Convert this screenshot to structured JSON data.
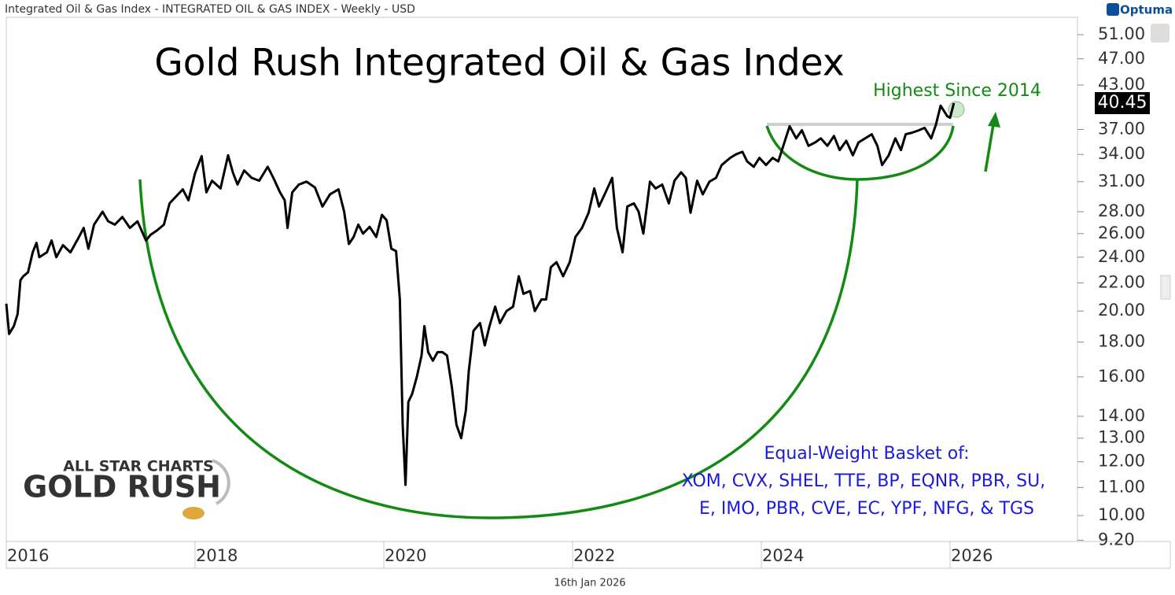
{
  "chart_data": {
    "type": "line",
    "source_label": "Integrated Oil & Gas Index - INTEGRATED OIL & GAS INDEX - Weekly - USD",
    "brand": "Optuma",
    "title": "Gold Rush Integrated Oil & Gas Index",
    "callout": "Highest Since 2014",
    "note_lines": [
      "Equal-Weight Basket of:",
      "XOM, CVX, SHEL, TTE, BP, EQNR, PBR, SU,",
      "E, IMO, PBR, CVE, EC, YPF, NFG, & TGS"
    ],
    "watermark_lines": [
      "ALL STAR CHARTS",
      "GOLD RUSH"
    ],
    "date_label": "16th Jan 2026",
    "color": "#000000",
    "log_scale": true,
    "grid": false,
    "last_value": 40.45,
    "xlim": [
      2016,
      2027.35
    ],
    "xticks": [
      2016,
      2018,
      2020,
      2022,
      2024,
      2026
    ],
    "ylim": [
      9.16,
      54.1
    ],
    "yticks": [
      {
        "value": 51,
        "label": "51.00"
      },
      {
        "value": 47,
        "label": "47.00"
      },
      {
        "value": 43,
        "label": "43.00"
      },
      {
        "value": 37,
        "label": "37.00"
      },
      {
        "value": 34,
        "label": "34.00"
      },
      {
        "value": 31,
        "label": "31.00"
      },
      {
        "value": 28,
        "label": "28.00"
      },
      {
        "value": 26,
        "label": "26.00"
      },
      {
        "value": 24,
        "label": "24.00"
      },
      {
        "value": 22,
        "label": "22.00"
      },
      {
        "value": 20,
        "label": "20.00"
      },
      {
        "value": 18,
        "label": "18.00"
      },
      {
        "value": 16,
        "label": "16.00"
      },
      {
        "value": 14,
        "label": "14.00"
      },
      {
        "value": 13,
        "label": "13.00"
      },
      {
        "value": 12,
        "label": "12.00"
      },
      {
        "value": 11,
        "label": "11.00"
      },
      {
        "value": 10,
        "label": "10.00"
      },
      {
        "value": 9.2,
        "label": "9.20"
      }
    ],
    "x": [
      2016.0,
      2016.03,
      2016.08,
      2016.12,
      2016.15,
      2016.18,
      2016.23,
      2016.28,
      2016.32,
      2016.35,
      2016.43,
      2016.48,
      2016.53,
      2016.6,
      2016.68,
      2016.77,
      2016.82,
      2016.87,
      2016.93,
      2017.02,
      2017.08,
      2017.15,
      2017.23,
      2017.31,
      2017.39,
      2017.48,
      2017.53,
      2017.6,
      2017.67,
      2017.73,
      2017.78,
      2017.87,
      2017.93,
      2018.0,
      2018.07,
      2018.12,
      2018.18,
      2018.27,
      2018.35,
      2018.4,
      2018.45,
      2018.52,
      2018.6,
      2018.68,
      2018.77,
      2018.83,
      2018.9,
      2018.95,
      2018.98,
      2019.03,
      2019.1,
      2019.18,
      2019.27,
      2019.35,
      2019.43,
      2019.52,
      2019.58,
      2019.63,
      2019.68,
      2019.73,
      2019.78,
      2019.85,
      2019.92,
      2019.98,
      2020.03,
      2020.08,
      2020.13,
      2020.17,
      2020.2,
      2020.23,
      2020.26,
      2020.3,
      2020.35,
      2020.4,
      2020.43,
      2020.47,
      2020.52,
      2020.57,
      2020.62,
      2020.67,
      2020.72,
      2020.77,
      2020.82,
      2020.87,
      2020.9,
      2020.95,
      2021.02,
      2021.07,
      2021.12,
      2021.18,
      2021.23,
      2021.3,
      2021.37,
      2021.43,
      2021.48,
      2021.55,
      2021.6,
      2021.67,
      2021.72,
      2021.77,
      2021.83,
      2021.9,
      2021.97,
      2022.03,
      2022.1,
      2022.17,
      2022.23,
      2022.28,
      2022.35,
      2022.42,
      2022.47,
      2022.53,
      2022.58,
      2022.65,
      2022.7,
      2022.75,
      2022.82,
      2022.88,
      2022.95,
      2023.02,
      2023.08,
      2023.15,
      2023.2,
      2023.25,
      2023.32,
      2023.38,
      2023.45,
      2023.52,
      2023.58,
      2023.67,
      2023.73,
      2023.8,
      2023.85,
      2023.92,
      2023.98,
      2024.05,
      2024.12,
      2024.18,
      2024.25,
      2024.3,
      2024.37,
      2024.43,
      2024.5,
      2024.57,
      2024.63,
      2024.7,
      2024.77,
      2024.83,
      2024.9,
      2024.97,
      2025.03,
      2025.1,
      2025.17,
      2025.23,
      2025.28,
      2025.35,
      2025.42,
      2025.48,
      2025.53,
      2025.6,
      2025.67,
      2025.73,
      2025.8,
      2025.85,
      2025.9,
      2025.97,
      2026.0,
      2026.04
    ],
    "values": [
      20.5,
      18.5,
      19,
      19.8,
      22.2,
      22.5,
      22.8,
      24.4,
      25.2,
      24,
      24.4,
      25.4,
      24,
      25,
      24.4,
      25.7,
      26.5,
      24.7,
      26.8,
      28,
      27.1,
      26.8,
      27.5,
      26.5,
      27.1,
      25.4,
      25.9,
      26.3,
      26.8,
      28.8,
      29.3,
      30.2,
      29.1,
      31.9,
      33.8,
      29.9,
      31.1,
      30.3,
      33.9,
      32,
      30.7,
      32.2,
      31.4,
      31.1,
      32.6,
      31.4,
      29.9,
      29.1,
      26.5,
      29.9,
      30.7,
      31,
      30.4,
      28.5,
      29.7,
      30.2,
      28,
      25.1,
      25.7,
      26.8,
      26,
      26.6,
      25.7,
      27.7,
      27.2,
      24.7,
      24.5,
      20.8,
      13.6,
      11.1,
      14.7,
      15.1,
      16,
      17.2,
      19,
      17.4,
      16.9,
      17.4,
      17.4,
      17.2,
      15.5,
      13.6,
      13,
      14.3,
      16.3,
      18.7,
      19.2,
      17.8,
      19,
      20.3,
      19.2,
      20,
      20.3,
      22.5,
      21.2,
      21.4,
      20,
      20.8,
      20.8,
      23.2,
      23.6,
      22.5,
      23.6,
      25.7,
      26.5,
      27.9,
      30.3,
      28.5,
      29.9,
      31.4,
      26.5,
      24.4,
      28.5,
      28.8,
      28,
      26,
      31,
      30.3,
      30.7,
      28.8,
      31.1,
      32,
      31.4,
      27.9,
      31.1,
      29.7,
      31,
      31.4,
      32.8,
      33.6,
      34,
      34.3,
      33.2,
      32.6,
      33.6,
      32.8,
      33.6,
      33.2,
      35.6,
      37.4,
      35.9,
      36.9,
      35,
      35.4,
      35.9,
      35,
      36.2,
      34.5,
      35.6,
      33.9,
      35.4,
      35.9,
      36.4,
      35,
      32.8,
      33.9,
      35.9,
      34.5,
      36.4,
      36.6,
      36.9,
      37.2,
      35.9,
      37.6,
      40.1,
      38.7,
      38.5,
      40.45
    ]
  }
}
